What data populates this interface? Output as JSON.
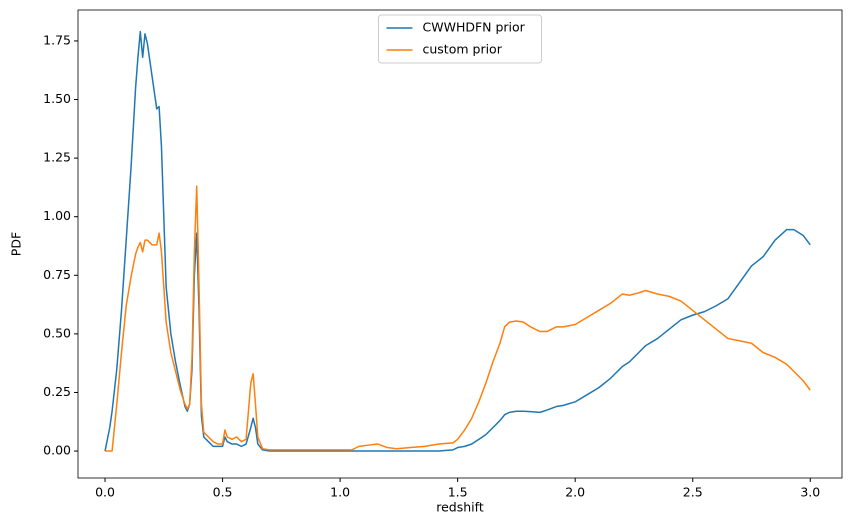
{
  "chart_data": {
    "type": "line",
    "xlabel": "redshift",
    "ylabel": "PDF",
    "legend": "upper center",
    "x": [
      0.0,
      0.02,
      0.03,
      0.05,
      0.07,
      0.09,
      0.11,
      0.13,
      0.14,
      0.15,
      0.16,
      0.17,
      0.18,
      0.2,
      0.22,
      0.23,
      0.24,
      0.26,
      0.28,
      0.3,
      0.32,
      0.34,
      0.35,
      0.36,
      0.37,
      0.38,
      0.39,
      0.4,
      0.41,
      0.42,
      0.44,
      0.46,
      0.48,
      0.5,
      0.51,
      0.52,
      0.54,
      0.56,
      0.58,
      0.6,
      0.62,
      0.63,
      0.64,
      0.65,
      0.67,
      0.7,
      0.8,
      1.0,
      1.05,
      1.08,
      1.12,
      1.16,
      1.2,
      1.24,
      1.3,
      1.36,
      1.42,
      1.48,
      1.5,
      1.53,
      1.56,
      1.59,
      1.62,
      1.65,
      1.68,
      1.7,
      1.72,
      1.75,
      1.78,
      1.81,
      1.85,
      1.88,
      1.92,
      1.95,
      2.0,
      2.05,
      2.1,
      2.15,
      2.2,
      2.23,
      2.27,
      2.3,
      2.35,
      2.4,
      2.45,
      2.5,
      2.55,
      2.6,
      2.65,
      2.7,
      2.75,
      2.8,
      2.85,
      2.9,
      2.93,
      2.97,
      3.0
    ],
    "series": [
      {
        "name": "CWWHDFN prior",
        "color": "#1f77b4",
        "values": [
          0.0,
          0.1,
          0.17,
          0.35,
          0.6,
          0.9,
          1.2,
          1.55,
          1.68,
          1.79,
          1.68,
          1.78,
          1.74,
          1.6,
          1.46,
          1.47,
          1.3,
          0.7,
          0.5,
          0.38,
          0.28,
          0.19,
          0.17,
          0.2,
          0.35,
          0.75,
          0.93,
          0.6,
          0.15,
          0.06,
          0.04,
          0.02,
          0.02,
          0.02,
          0.06,
          0.04,
          0.03,
          0.03,
          0.02,
          0.03,
          0.1,
          0.14,
          0.1,
          0.03,
          0.005,
          0.0,
          0.0,
          0.0,
          0.0,
          0.0,
          0.0,
          0.0,
          0.0,
          0.0,
          0.0,
          0.0,
          0.0,
          0.005,
          0.015,
          0.02,
          0.03,
          0.05,
          0.07,
          0.1,
          0.13,
          0.155,
          0.165,
          0.17,
          0.17,
          0.168,
          0.165,
          0.175,
          0.19,
          0.195,
          0.21,
          0.24,
          0.27,
          0.31,
          0.36,
          0.38,
          0.42,
          0.45,
          0.48,
          0.52,
          0.56,
          0.58,
          0.595,
          0.62,
          0.65,
          0.72,
          0.79,
          0.83,
          0.9,
          0.945,
          0.945,
          0.92,
          0.88
        ]
      },
      {
        "name": "custom prior",
        "color": "#ff7f0e",
        "values": [
          0.0,
          0.0,
          0.0,
          0.2,
          0.42,
          0.62,
          0.74,
          0.84,
          0.87,
          0.89,
          0.85,
          0.9,
          0.9,
          0.88,
          0.88,
          0.93,
          0.85,
          0.55,
          0.42,
          0.34,
          0.26,
          0.2,
          0.18,
          0.2,
          0.4,
          0.85,
          1.13,
          0.7,
          0.2,
          0.08,
          0.06,
          0.04,
          0.03,
          0.03,
          0.09,
          0.06,
          0.05,
          0.06,
          0.04,
          0.05,
          0.29,
          0.33,
          0.2,
          0.06,
          0.01,
          0.005,
          0.005,
          0.005,
          0.005,
          0.02,
          0.025,
          0.03,
          0.015,
          0.01,
          0.015,
          0.02,
          0.03,
          0.035,
          0.05,
          0.09,
          0.14,
          0.21,
          0.29,
          0.38,
          0.46,
          0.53,
          0.55,
          0.555,
          0.55,
          0.53,
          0.51,
          0.51,
          0.53,
          0.53,
          0.54,
          0.57,
          0.6,
          0.63,
          0.67,
          0.665,
          0.675,
          0.685,
          0.67,
          0.66,
          0.64,
          0.6,
          0.56,
          0.52,
          0.48,
          0.47,
          0.46,
          0.42,
          0.4,
          0.37,
          0.34,
          0.3,
          0.26
        ]
      }
    ],
    "xlim": [
      -0.115,
      3.135
    ],
    "ylim": [
      -0.115,
      1.882
    ],
    "xticks": [
      {
        "value": 0,
        "label": "0.0"
      },
      0.5,
      {
        "value": 1,
        "label": "1.0"
      },
      1.5,
      {
        "value": 2,
        "label": "2.0"
      },
      2.5,
      {
        "value": 3,
        "label": "3.0"
      }
    ],
    "yticks": [
      {
        "value": 0,
        "label": "0.00"
      },
      0.25,
      {
        "value": 0.5,
        "label": "0.50"
      },
      0.75,
      {
        "value": 1,
        "label": "1.00"
      },
      1.25,
      {
        "value": 1.5,
        "label": "1.50"
      },
      1.75
    ]
  }
}
